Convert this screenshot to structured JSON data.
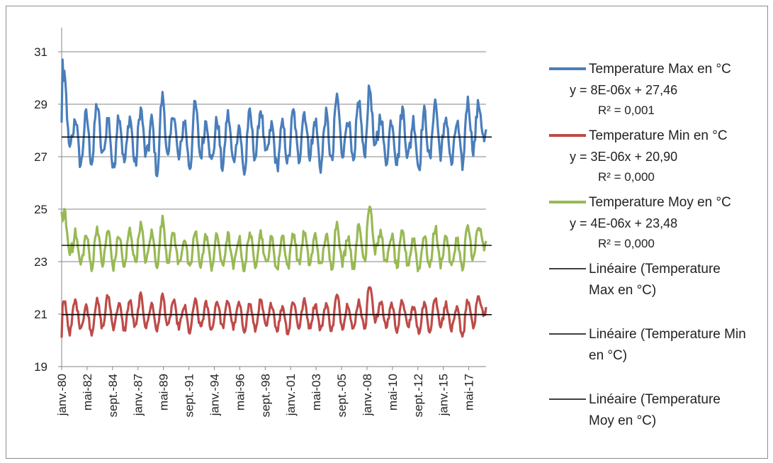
{
  "chart_data": {
    "type": "line",
    "title": "",
    "xlabel": "",
    "ylabel": "",
    "ylim": [
      19,
      31
    ],
    "yticks": [
      19,
      21,
      23,
      25,
      27,
      29,
      31
    ],
    "x_tick_labels": [
      "janv.-80",
      "mai-82",
      "sept.-84",
      "janv.-87",
      "mai-89",
      "sept.-91",
      "janv.-94",
      "mai-96",
      "sept.-98",
      "janv.-01",
      "mai-03",
      "sept.-05",
      "janv.-08",
      "mai-10",
      "sept.-12",
      "janv.-15",
      "mai-17"
    ],
    "x_start": "1980-01",
    "x_end": "2018-12",
    "grid": "horizontal",
    "legend_position": "right",
    "series": [
      {
        "name": "Temperature Max en °C",
        "color": "#4a7ebb",
        "yearly_means": [
          28.6,
          27.6,
          27.7,
          28.0,
          27.5,
          27.7,
          27.6,
          27.9,
          27.4,
          28.1,
          27.8,
          27.5,
          28.0,
          27.6,
          27.5,
          27.7,
          27.3,
          27.8,
          27.9,
          27.4,
          27.5,
          27.8,
          27.9,
          27.5,
          27.7,
          28.2,
          27.6,
          28.1,
          28.4,
          27.7,
          27.6,
          27.9,
          27.5,
          27.8,
          28.1,
          27.6,
          27.5,
          28.2,
          28.3
        ],
        "yearly_amplitudes": [
          1.4,
          0.9,
          0.9,
          1.0,
          1.0,
          0.9,
          0.9,
          0.9,
          1.0,
          1.2,
          0.9,
          0.9,
          1.0,
          0.8,
          0.9,
          0.9,
          0.9,
          0.8,
          0.9,
          0.8,
          0.7,
          0.9,
          0.8,
          0.9,
          0.9,
          1.1,
          0.9,
          1.0,
          1.2,
          0.9,
          0.8,
          0.9,
          0.9,
          0.9,
          1.0,
          0.9,
          0.8,
          0.9,
          0.7
        ],
        "trend": {
          "label": "Linéaire (Temperature Max en °C)",
          "equation": "y = 8E-06x + 27,46",
          "r2": "R² = 0,001",
          "value": 27.75
        }
      },
      {
        "name": "Temperature Min en °C",
        "color": "#be4b48",
        "yearly_means": [
          20.9,
          21.0,
          20.8,
          21.0,
          21.1,
          20.9,
          21.0,
          21.1,
          20.9,
          21.1,
          21.0,
          20.8,
          21.0,
          20.9,
          21.0,
          21.0,
          20.9,
          20.9,
          21.0,
          20.9,
          20.8,
          21.0,
          21.0,
          20.9,
          20.9,
          21.1,
          20.9,
          21.0,
          21.4,
          21.0,
          20.9,
          21.0,
          20.8,
          20.9,
          21.1,
          20.9,
          20.7,
          21.0,
          21.3
        ],
        "yearly_amplitudes": [
          0.6,
          0.5,
          0.5,
          0.5,
          0.6,
          0.5,
          0.5,
          0.6,
          0.5,
          0.6,
          0.5,
          0.5,
          0.5,
          0.5,
          0.5,
          0.5,
          0.5,
          0.5,
          0.5,
          0.5,
          0.5,
          0.5,
          0.5,
          0.5,
          0.5,
          0.6,
          0.5,
          0.5,
          0.7,
          0.5,
          0.5,
          0.5,
          0.5,
          0.5,
          0.5,
          0.5,
          0.5,
          0.5,
          0.3
        ],
        "trend": {
          "label": "Linéaire (Temperature Min en °C)",
          "equation": "y = 3E-06x + 20,90",
          "r2": "R² = 0,000",
          "value": 20.98
        }
      },
      {
        "name": "Temperature Moy en °C",
        "color": "#98b954",
        "yearly_means": [
          24.1,
          23.5,
          23.4,
          23.6,
          23.5,
          23.4,
          23.6,
          23.7,
          23.5,
          23.8,
          23.5,
          23.3,
          23.5,
          23.4,
          23.4,
          23.4,
          23.3,
          23.5,
          23.5,
          23.3,
          23.4,
          23.5,
          23.5,
          23.4,
          23.4,
          23.7,
          23.4,
          23.7,
          24.3,
          23.5,
          23.4,
          23.5,
          23.3,
          23.4,
          23.6,
          23.4,
          23.3,
          23.7,
          23.9
        ],
        "yearly_amplitudes": [
          0.8,
          0.6,
          0.6,
          0.7,
          0.7,
          0.6,
          0.6,
          0.7,
          0.6,
          0.8,
          0.6,
          0.6,
          0.6,
          0.6,
          0.6,
          0.6,
          0.6,
          0.6,
          0.6,
          0.6,
          0.6,
          0.6,
          0.6,
          0.6,
          0.6,
          0.8,
          0.6,
          0.6,
          0.9,
          0.6,
          0.6,
          0.6,
          0.6,
          0.6,
          0.7,
          0.6,
          0.6,
          0.6,
          0.4
        ],
        "trend": {
          "label": "Linéaire (Temperature Moy en °C)",
          "equation": "y = 4E-06x + 23,48",
          "r2": "R² = 0,000",
          "value": 23.62
        }
      }
    ],
    "legend": {
      "entries": [
        {
          "label": "Temperature Max en °C",
          "sub": [
            "y = 8E-06x + 27,46",
            "R² = 0,001"
          ],
          "color": "#4a7ebb",
          "kind": "series"
        },
        {
          "label": "Temperature Min en °C",
          "sub": [
            "y = 3E-06x + 20,90",
            "R² = 0,000"
          ],
          "color": "#be4b48",
          "kind": "series"
        },
        {
          "label": "Temperature Moy en °C",
          "sub": [
            "y = 4E-06x + 23,48",
            "R² = 0,000"
          ],
          "color": "#98b954",
          "kind": "series"
        },
        {
          "label_lines": [
            "Linéaire (Temperature",
            "Max en °C)"
          ],
          "color": "#000000",
          "kind": "trend"
        },
        {
          "label_lines": [
            "Linéaire (Temperature Min",
            "en °C)"
          ],
          "color": "#000000",
          "kind": "trend"
        },
        {
          "label_lines": [
            "Linéaire (Temperature",
            "Moy en °C)"
          ],
          "color": "#000000",
          "kind": "trend"
        }
      ]
    }
  }
}
